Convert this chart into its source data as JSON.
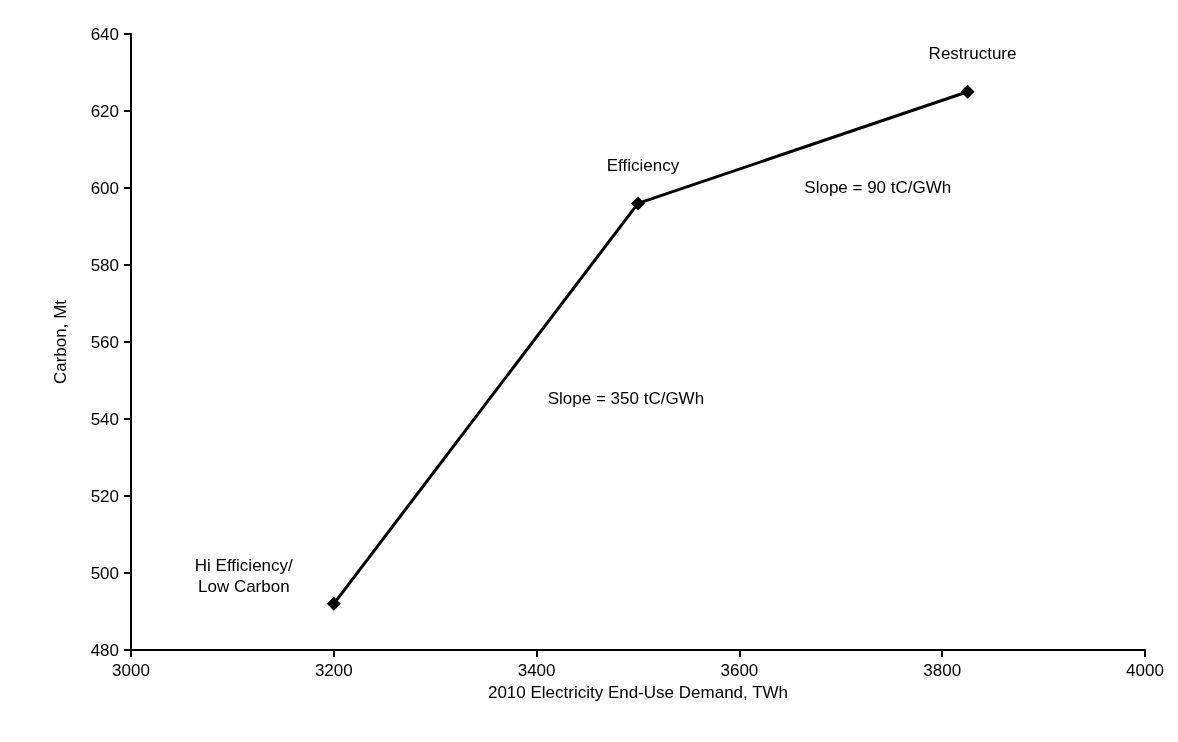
{
  "chart_data": {
    "type": "line",
    "xlabel": "2010 Electricity End-Use Demand, TWh",
    "ylabel": "Carbon, Mt",
    "x": [
      3200,
      3500,
      3825
    ],
    "series": [
      {
        "color": "#000000",
        "values": [
          492,
          596,
          625
        ]
      }
    ],
    "xlim": [
      3000,
      4000
    ],
    "xticks": [
      3000,
      3200,
      3400,
      3600,
      3800,
      4000
    ],
    "ylim": [
      480,
      640
    ],
    "yticks": [
      480,
      500,
      520,
      540,
      560,
      580,
      600,
      620,
      640
    ],
    "grid": false,
    "marker": "diamond",
    "line_style": "solid",
    "annotations": [
      {
        "text": "Hi Efficiency/\nLow Carbon",
        "x": 3200,
        "y": 492
      },
      {
        "text": "Efficiency",
        "x": 3500,
        "y": 596
      },
      {
        "text": "Restructure",
        "x": 3825,
        "y": 625
      },
      "Slope = 350 tC/GWh",
      "Slope = 90 tC/GWh"
    ]
  }
}
